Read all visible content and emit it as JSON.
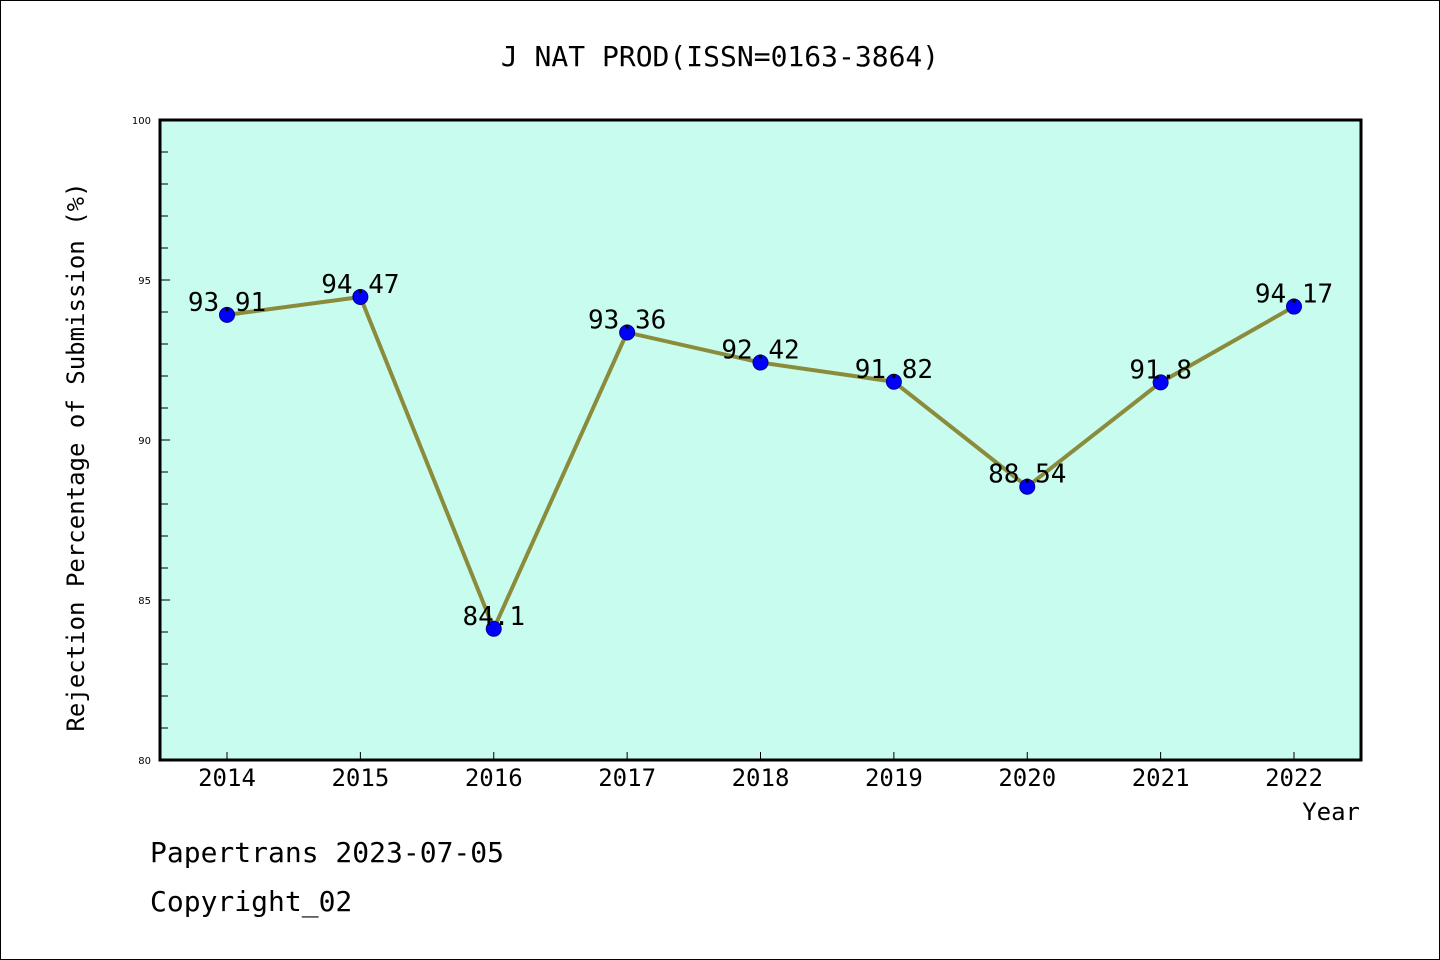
{
  "chart_data": {
    "type": "line",
    "title": "J NAT PROD(ISSN=0163-3864)",
    "xlabel": "Year",
    "ylabel": "Rejection Percentage of Submission (%)",
    "categories": [
      "2014",
      "2015",
      "2016",
      "2017",
      "2018",
      "2019",
      "2020",
      "2021",
      "2022"
    ],
    "values": [
      93.91,
      94.47,
      84.1,
      93.36,
      92.42,
      91.82,
      88.54,
      91.8,
      94.17
    ],
    "data_labels": [
      "93.91",
      "94.47",
      "84.1",
      "93.36",
      "92.42",
      "91.82",
      "88.54",
      "91.8",
      "94.17"
    ],
    "ylim": [
      80,
      100
    ],
    "yticks": [
      80,
      85,
      90,
      95,
      100
    ],
    "ytick_labels": [
      "80",
      "85",
      "90",
      "95",
      "100"
    ],
    "grid": false,
    "legend": "none",
    "colors": {
      "plot_background": "#c8fcee",
      "line": "#8b8b3c",
      "marker_fill": "#0000ff",
      "marker_edge": "#00008b"
    }
  },
  "footer": {
    "date_line": "Papertrans 2023-07-05",
    "copyright_line": "Copyright_02"
  }
}
